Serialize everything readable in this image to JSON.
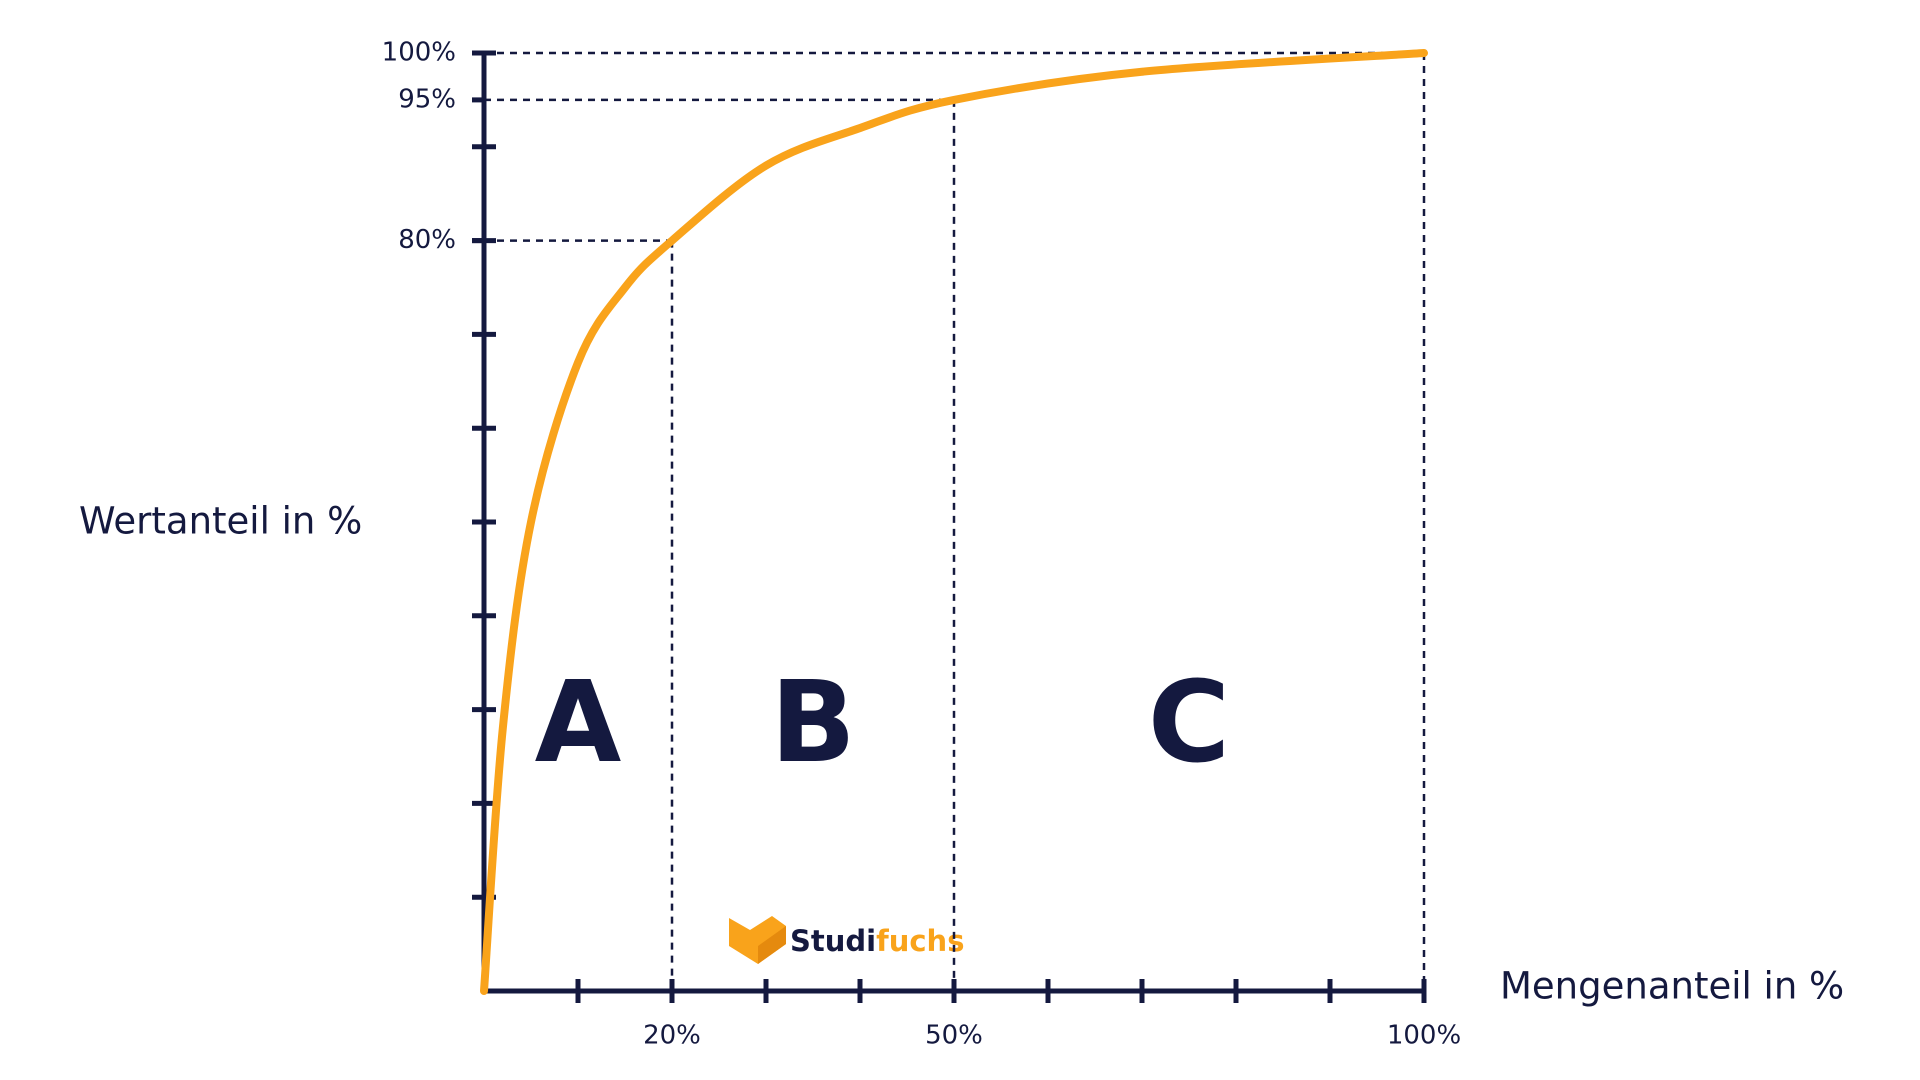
{
  "chart_data": {
    "type": "line",
    "x_label": "Mengenanteil in %",
    "y_label": "Wertanteil in %",
    "x": [
      0,
      2,
      5,
      10,
      15,
      20,
      30,
      40,
      50,
      70,
      100
    ],
    "series": [
      {
        "color": "#f9a31b",
        "values": [
          0,
          28,
          50,
          67,
          75,
          80,
          88,
          92,
          95,
          98,
          100
        ]
      }
    ],
    "xlim": [
      0,
      100
    ],
    "ylim": [
      0,
      100
    ],
    "xticks": [
      {
        "value": 20,
        "label": "20%"
      },
      {
        "value": 50,
        "label": "50%"
      },
      {
        "value": 100,
        "label": "100%"
      }
    ],
    "minor_xticks": [
      10,
      20,
      30,
      40,
      50,
      60,
      70,
      80,
      90,
      100
    ],
    "yticks": [
      {
        "value": 80,
        "label": "80%"
      },
      {
        "value": 95,
        "label": "95%"
      },
      {
        "value": 100,
        "label": "100%"
      }
    ],
    "minor_yticks": [
      10,
      20,
      30,
      40,
      50,
      60,
      70,
      80,
      90,
      100
    ],
    "guides": [
      {
        "x": 20,
        "y": 80
      },
      {
        "x": 50,
        "y": 95
      },
      {
        "x": 100,
        "y": 100
      }
    ],
    "regions": [
      {
        "label": "A",
        "from": 0,
        "to": 20
      },
      {
        "label": "B",
        "from": 20,
        "to": 50
      },
      {
        "label": "C",
        "from": 50,
        "to": 100
      }
    ],
    "watermark": [
      "Studi",
      "fuchs"
    ]
  }
}
